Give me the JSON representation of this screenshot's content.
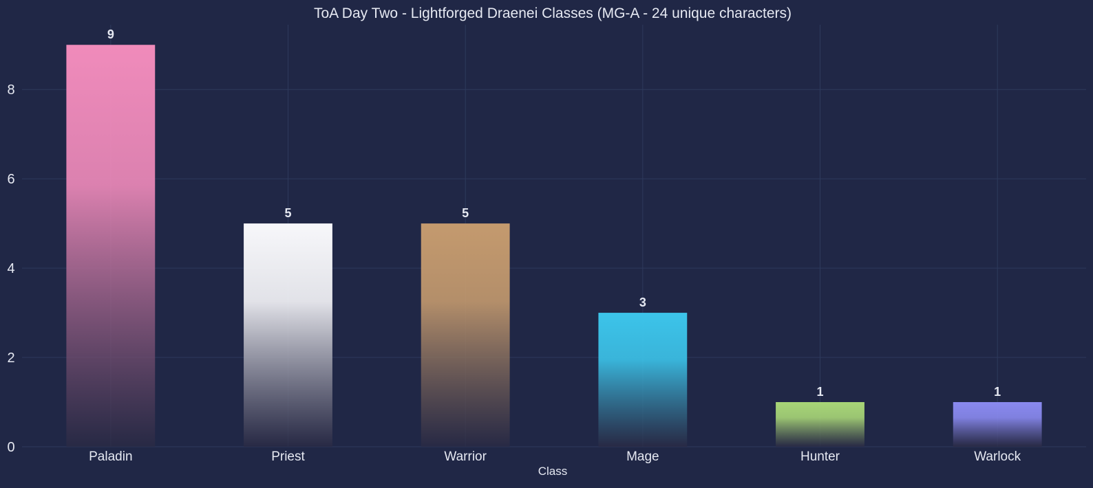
{
  "chart_data": {
    "type": "bar",
    "title": "ToA Day Two - Lightforged Draenei Classes (MG-A - 24 unique characters)",
    "xlabel": "Class",
    "ylabel": "",
    "categories": [
      "Paladin",
      "Priest",
      "Warrior",
      "Mage",
      "Hunter",
      "Warlock"
    ],
    "values": [
      9,
      5,
      5,
      3,
      1,
      1
    ],
    "bar_colors": [
      "#F08BBB",
      "#F7F7FA",
      "#C49A6E",
      "#3CC4EA",
      "#A8D677",
      "#8A8AF0"
    ],
    "ylim": [
      0,
      9.45
    ],
    "yticks": [
      0,
      2,
      4,
      6,
      8
    ],
    "grid": true,
    "data_labels": true
  },
  "colors": {
    "background": "#202746",
    "grid": "#2E3A5C",
    "text": "#E6E9F2",
    "bar_fade": "#2A2A44"
  }
}
